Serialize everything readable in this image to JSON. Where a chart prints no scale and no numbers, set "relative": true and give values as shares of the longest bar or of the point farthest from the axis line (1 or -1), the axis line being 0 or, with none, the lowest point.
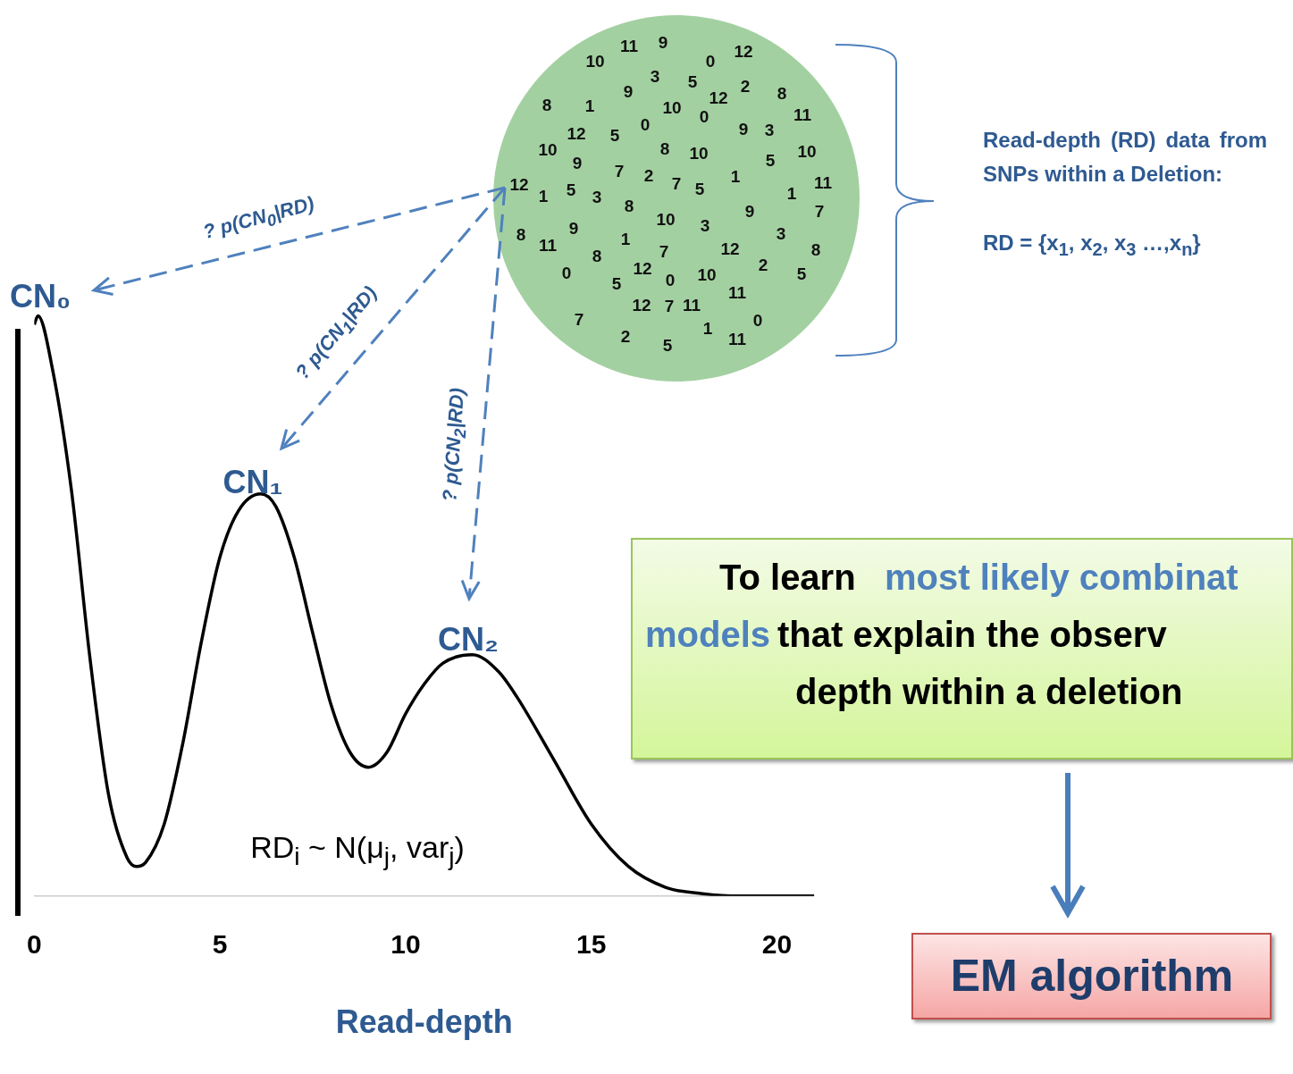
{
  "chart_data": {
    "type": "line",
    "relative": true,
    "xlabel": "Read-depth",
    "xlim": [
      0,
      21
    ],
    "xticks": [
      0,
      5,
      10,
      15,
      20
    ],
    "grid": false,
    "legend": false,
    "marker": "none",
    "line_style": "solid",
    "color": "#000000",
    "x": [
      0,
      0.1,
      0.5,
      1,
      1.5,
      2,
      2.5,
      2.75,
      3,
      3.5,
      4,
      4.5,
      5,
      5.5,
      6.1,
      6.5,
      7,
      7.5,
      8,
      8.5,
      9,
      9.5,
      10,
      10.5,
      11,
      11.8,
      12.5,
      13,
      14,
      15,
      16,
      17,
      18,
      19,
      21
    ],
    "values": [
      0.985,
      1,
      0.905,
      0.7,
      0.41,
      0.175,
      0.066,
      0.051,
      0.058,
      0.124,
      0.263,
      0.438,
      0.584,
      0.664,
      0.693,
      0.672,
      0.584,
      0.453,
      0.328,
      0.248,
      0.222,
      0.248,
      0.314,
      0.365,
      0.401,
      0.416,
      0.387,
      0.343,
      0.234,
      0.124,
      0.051,
      0.015,
      0.004,
      0,
      0
    ],
    "annotations": [
      "CN₀",
      "CN₁",
      "CN₂",
      "? p(CN$_{0}$|RD)",
      "? p(CN$_{1}$|RD)",
      "? p(CN$_{2}$|RD)",
      "RD$_{i}$ ~ N(μ$_{j}$, var$_{j}$)",
      "Read-depth (RD) data from SNPs within a Deletion:",
      "RD = {x$_{1}$, x$_{2}$, x$_{3}$ …,x$_{n}$}",
      "To learn",
      "most likely combinat",
      "models",
      "that explain the observ",
      "depth within a deletion",
      "EM algorithm",
      "10",
      "11",
      "9",
      "0",
      "12",
      "3",
      "5",
      "9",
      "2",
      "8",
      "8",
      "1",
      "10",
      "12",
      "0",
      "11",
      "0",
      "12",
      "5",
      "9",
      "3",
      "10",
      "8",
      "10",
      "5",
      "10",
      "9",
      "7",
      "2",
      "7",
      "5",
      "1",
      "12",
      "1",
      "5",
      "3",
      "8",
      "11",
      "1",
      "7",
      "10",
      "3",
      "9",
      "9",
      "1",
      "3",
      "8",
      "11",
      "7",
      "12",
      "8",
      "8",
      "2",
      "0",
      "12",
      "5",
      "0",
      "10",
      "5",
      "11",
      "12",
      "7",
      "11",
      "7",
      "0",
      "1",
      "2",
      "11",
      "5"
    ]
  }
}
